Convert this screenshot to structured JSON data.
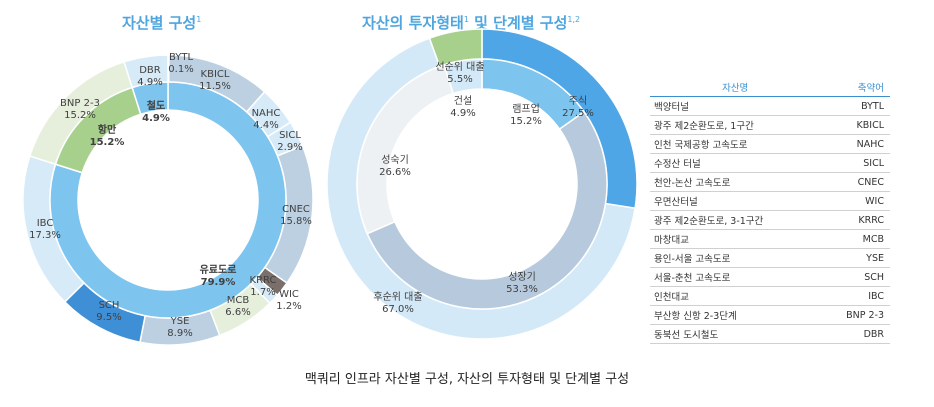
{
  "titles": {
    "left_main": "자산별 구성",
    "left_sup": "1",
    "mid_main": "자산의 투자형태",
    "mid_sup1": "1",
    "mid_conj": " 및 단계별 구성",
    "mid_sup2": "1,2"
  },
  "caption": "맥쿼리 인프라 자산별 구성, 자산의 투자형태 및 단계별 구성",
  "legend_table": {
    "headers": [
      "자산명",
      "축약어"
    ],
    "rows": [
      [
        "백양터널",
        "BYTL"
      ],
      [
        "광주 제2순환도로, 1구간",
        "KBICL"
      ],
      [
        "인천 국제공항 고속도로",
        "NAHC"
      ],
      [
        "수정산 터널",
        "SICL"
      ],
      [
        "천안-논산 고속도로",
        "CNEC"
      ],
      [
        "우면산터널",
        "WIC"
      ],
      [
        "광주 제2순환도로, 3-1구간",
        "KRRC"
      ],
      [
        "마창대교",
        "MCB"
      ],
      [
        "용인-서울 고속도로",
        "YSE"
      ],
      [
        "서울-춘천 고속도로",
        "SCH"
      ],
      [
        "인천대교",
        "IBC"
      ],
      [
        "부산항 신항 2-3단계",
        "BNP 2-3"
      ],
      [
        "동북선 도시철도",
        "DBR"
      ]
    ]
  },
  "chart_data": [
    {
      "type": "pie",
      "subtype": "donut-nested",
      "outer_ring": [
        {
          "name": "BYTL",
          "value": 0.1,
          "label": "0.1%",
          "color": "#bcd0e2"
        },
        {
          "name": "KBICL",
          "value": 11.5,
          "label": "11.5%",
          "color": "#bcd0e2"
        },
        {
          "name": "NAHC",
          "value": 4.4,
          "label": "4.4%",
          "color": "#d6eaf8"
        },
        {
          "name": "SICL",
          "value": 2.9,
          "label": "2.9%",
          "color": "#d6eaf8"
        },
        {
          "name": "CNEC",
          "value": 15.8,
          "label": "15.8%",
          "color": "#bcd0e2"
        },
        {
          "name": "KRRC",
          "value": 1.7,
          "label": "1.7%",
          "color": "#7a6f6a"
        },
        {
          "name": "WIC",
          "value": 1.2,
          "label": "1.2%",
          "color": "#d6eaf8"
        },
        {
          "name": "MCB",
          "value": 6.6,
          "label": "6.6%",
          "color": "#e6efdc"
        },
        {
          "name": "YSE",
          "value": 8.9,
          "label": "8.9%",
          "color": "#bcd0e2"
        },
        {
          "name": "SCH",
          "value": 9.5,
          "label": "9.5%",
          "color": "#3f8fd6"
        },
        {
          "name": "IBC",
          "value": 17.3,
          "label": "17.3%",
          "color": "#d6eaf8"
        },
        {
          "name": "BNP 2-3",
          "value": 15.2,
          "label": "15.2%",
          "color": "#e6efdc"
        },
        {
          "name": "DBR",
          "value": 4.9,
          "label": "4.9%",
          "color": "#d6eaf8"
        }
      ],
      "inner_ring": [
        {
          "name": "유료도로",
          "value": 79.9,
          "label": "79.9%",
          "color": "#7dc4ee"
        },
        {
          "name": "항만",
          "value": 15.2,
          "label": "15.2%",
          "color": "#a8d08d"
        },
        {
          "name": "철도",
          "value": 4.9,
          "label": "4.9%",
          "color": "#7dc4ee"
        }
      ]
    },
    {
      "type": "pie",
      "subtype": "donut-nested",
      "outer_ring": [
        {
          "name": "주식",
          "value": 27.5,
          "label": "27.5%",
          "color": "#4fa6e6"
        },
        {
          "name": "후순위 대출",
          "value": 67.0,
          "label": "67.0%",
          "color": "#d3e9f7"
        },
        {
          "name": "선순위 대출",
          "value": 5.5,
          "label": "5.5%",
          "color": "#a8d08d"
        }
      ],
      "inner_ring": [
        {
          "name": "램프업",
          "value": 15.2,
          "label": "15.2%",
          "color": "#7dc4ee"
        },
        {
          "name": "성장기",
          "value": 53.3,
          "label": "53.3%",
          "color": "#b7c9dc"
        },
        {
          "name": "성숙기",
          "value": 26.6,
          "label": "26.6%",
          "color": "#eef1f4"
        },
        {
          "name": "건설",
          "value": 4.9,
          "label": "4.9%",
          "color": "#d3e9f7"
        }
      ]
    }
  ]
}
